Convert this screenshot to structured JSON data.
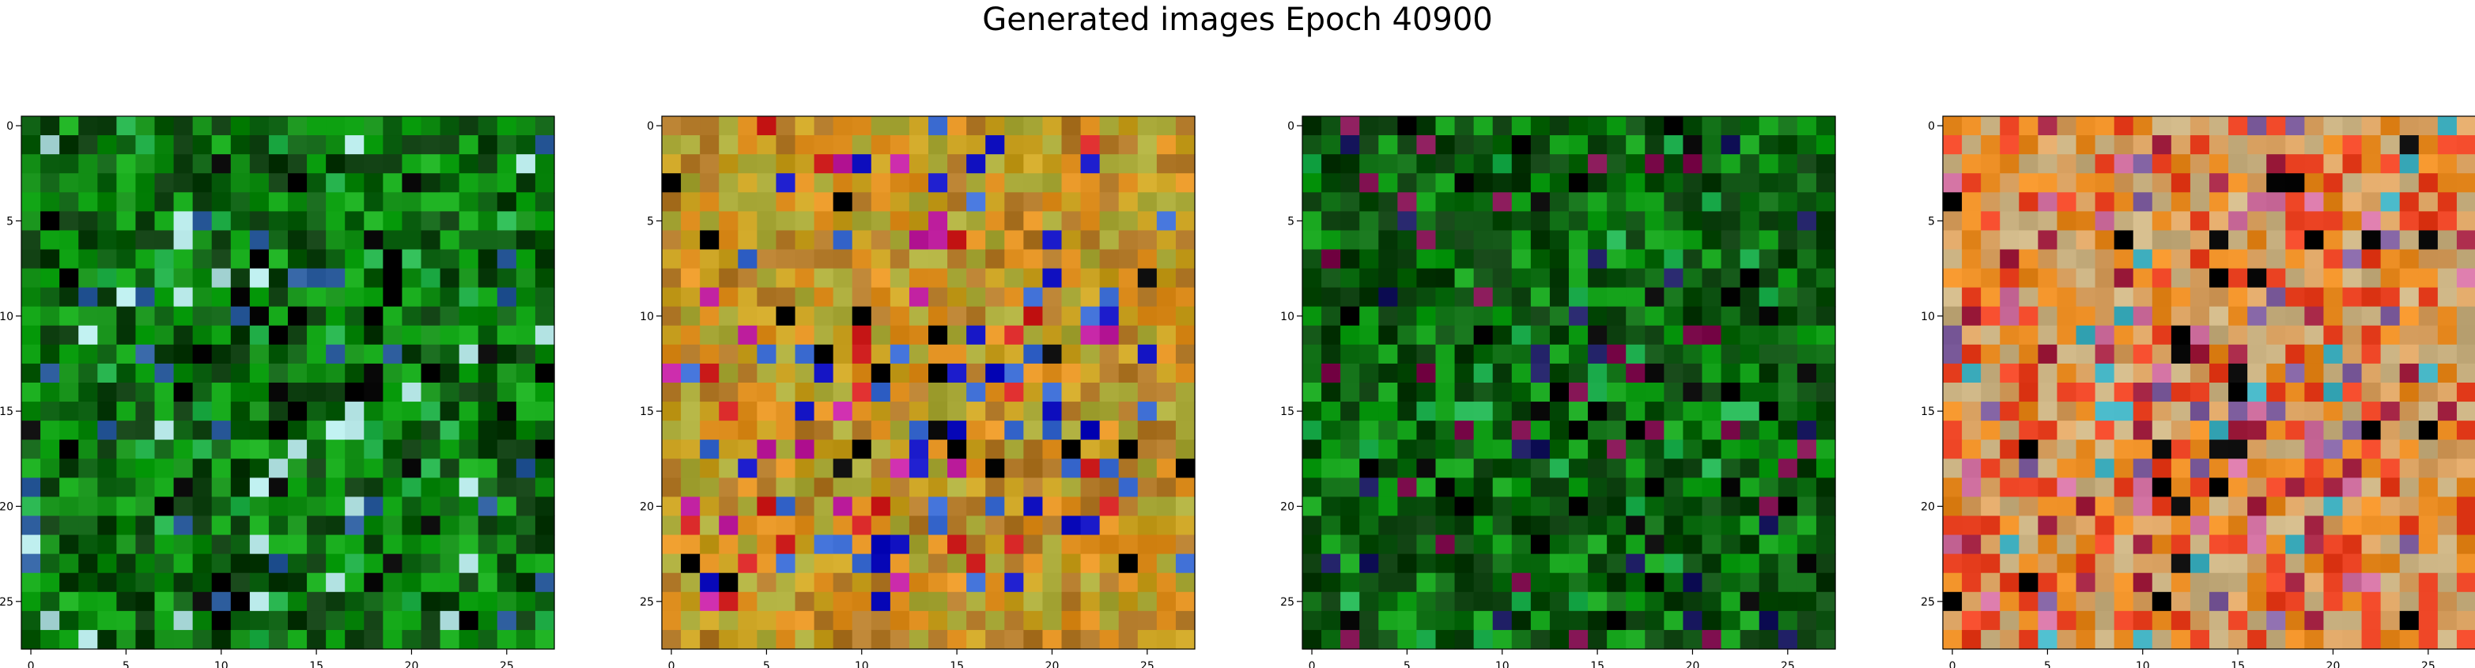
{
  "figure": {
    "title": "Generated images Epoch 40900"
  },
  "chart_data": [
    {
      "type": "heatmap",
      "title": "",
      "xlabel": "",
      "ylabel": "",
      "grid": false,
      "size": [
        28,
        28
      ],
      "xlim": [
        -0.5,
        27.5
      ],
      "ylim": [
        27.5,
        -0.5
      ],
      "xticks": [
        0,
        5,
        10,
        15,
        20,
        25
      ],
      "yticks": [
        0,
        5,
        10,
        15,
        20,
        25
      ],
      "dominant_colors": [
        "#0f8a12",
        "#0b5e10",
        "#14a818",
        "#0a3a0c"
      ],
      "accent_colors": [
        "#000000",
        "#b0e0e0",
        "#25b24c",
        "#2a5a9a"
      ]
    },
    {
      "type": "heatmap",
      "title": "",
      "xlabel": "",
      "ylabel": "",
      "grid": false,
      "size": [
        28,
        28
      ],
      "xlim": [
        -0.5,
        27.5
      ],
      "ylim": [
        27.5,
        -0.5
      ],
      "xticks": [
        0,
        5,
        10,
        15,
        20,
        25
      ],
      "yticks": [
        0,
        5,
        10,
        15,
        20,
        25
      ],
      "dominant_colors": [
        "#c8a020",
        "#e09020",
        "#b07828",
        "#a8a838"
      ],
      "accent_colors": [
        "#1010c0",
        "#c020a0",
        "#d02020",
        "#3a6ad0",
        "#000000"
      ]
    },
    {
      "type": "heatmap",
      "title": "",
      "xlabel": "",
      "ylabel": "",
      "grid": false,
      "size": [
        28,
        28
      ],
      "xlim": [
        -0.5,
        27.5
      ],
      "ylim": [
        27.5,
        -0.5
      ],
      "xticks": [
        0,
        5,
        10,
        15,
        20,
        25
      ],
      "yticks": [
        0,
        5,
        10,
        15,
        20,
        25
      ],
      "dominant_colors": [
        "#0b6a10",
        "#0a4e0e",
        "#12a018",
        "#083a0a"
      ],
      "accent_colors": [
        "#000000",
        "#1a1a60",
        "#801050",
        "#20b050"
      ]
    },
    {
      "type": "heatmap",
      "title": "",
      "xlabel": "",
      "ylabel": "",
      "grid": false,
      "size": [
        28,
        28
      ],
      "xlim": [
        -0.5,
        27.5
      ],
      "ylim": [
        27.5,
        -0.5
      ],
      "xticks": [
        0,
        5,
        10,
        15,
        20,
        25
      ],
      "yticks": [
        0,
        5,
        10,
        15,
        20,
        25
      ],
      "dominant_colors": [
        "#e88a20",
        "#d8a060",
        "#c8b080",
        "#e84020"
      ],
      "accent_colors": [
        "#a02040",
        "#d070a0",
        "#40b0c0",
        "#8060a0",
        "#000000"
      ]
    }
  ]
}
